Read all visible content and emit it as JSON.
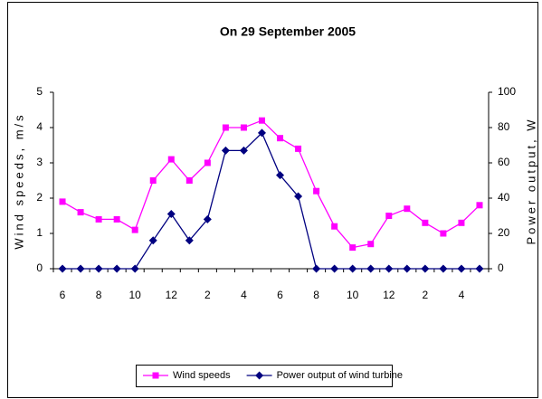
{
  "chart_data": {
    "type": "line",
    "title": "On  29 September 2005",
    "y_label": "Wind speeds, m/s",
    "y2_label": "Power output, W",
    "categories": [
      "6",
      null,
      "8",
      null,
      "10",
      null,
      "12",
      null,
      "2",
      null,
      "4",
      null,
      "6",
      null,
      "8",
      null,
      "10",
      null,
      "12",
      null,
      "2",
      null,
      "4",
      null
    ],
    "series": [
      {
        "name": "Wind speeds",
        "color": "#ff00ff",
        "marker": "square",
        "values": [
          1.9,
          1.6,
          1.4,
          1.4,
          1.1,
          2.5,
          3.1,
          2.5,
          3.0,
          4.0,
          4.0,
          4.2,
          3.7,
          3.4,
          2.2,
          1.2,
          0.6,
          0.7,
          1.5,
          1.7,
          1.3,
          1.0,
          1.3,
          1.8
        ]
      },
      {
        "name": "Power output of wind turbine",
        "color": "#000080",
        "marker": "diamond",
        "axis": "y2",
        "values": [
          0,
          0,
          0,
          0,
          0,
          16,
          31,
          16,
          28,
          67,
          67,
          77,
          53,
          41,
          0,
          0,
          0,
          0,
          0,
          0,
          0,
          0,
          0,
          0
        ]
      }
    ],
    "ylim": [
      0,
      5
    ],
    "yticks": [
      0,
      1,
      2,
      3,
      4,
      5
    ],
    "y2lim": [
      0,
      100
    ],
    "y2ticks": [
      0,
      20,
      40,
      60,
      80,
      100
    ],
    "grid": false,
    "legend": "bottom"
  }
}
